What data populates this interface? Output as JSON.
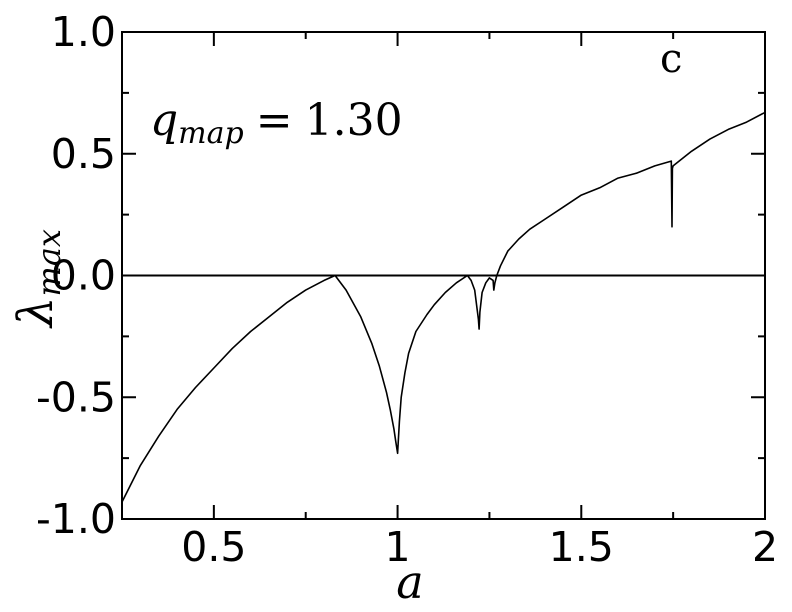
{
  "chart_data": {
    "type": "line",
    "panel_label": "c",
    "annotation": {
      "symbol": "q",
      "subscript": "map",
      "equals": "=",
      "value": "1.30"
    },
    "xlabel": "a",
    "ylabel": {
      "symbol": "λ",
      "subscript": "max"
    },
    "xlim": [
      0.25,
      2.0
    ],
    "ylim": [
      -1.0,
      1.0
    ],
    "xticks": [
      0.5,
      1.0,
      1.5,
      2.0
    ],
    "xtick_labels": [
      "0.5",
      "1",
      "1.5",
      "2"
    ],
    "yticks": [
      -1.0,
      -0.5,
      0.0,
      0.5,
      1.0
    ],
    "ytick_labels": [
      "-1.0",
      "-0.5",
      "0.0",
      "0.5",
      "1.0"
    ],
    "reference_line": {
      "y": 0.0
    },
    "grid": false,
    "series": [
      {
        "color": "#000000",
        "x": [
          0.25,
          0.3,
          0.35,
          0.4,
          0.45,
          0.5,
          0.55,
          0.6,
          0.65,
          0.7,
          0.75,
          0.8,
          0.83,
          0.86,
          0.9,
          0.93,
          0.95,
          0.97,
          0.98,
          0.99,
          0.995,
          1.0,
          1.005,
          1.01,
          1.02,
          1.03,
          1.05,
          1.08,
          1.1,
          1.13,
          1.16,
          1.19,
          1.2,
          1.21,
          1.22,
          1.222,
          1.224,
          1.23,
          1.24,
          1.25,
          1.26,
          1.262,
          1.265,
          1.27,
          1.28,
          1.3,
          1.33,
          1.36,
          1.4,
          1.45,
          1.5,
          1.55,
          1.6,
          1.65,
          1.7,
          1.745,
          1.747,
          1.748,
          1.75,
          1.8,
          1.85,
          1.9,
          1.95,
          2.0
        ],
        "y": [
          -0.93,
          -0.78,
          -0.66,
          -0.55,
          -0.46,
          -0.38,
          -0.3,
          -0.23,
          -0.17,
          -0.11,
          -0.06,
          -0.02,
          0.0,
          -0.06,
          -0.17,
          -0.28,
          -0.37,
          -0.48,
          -0.55,
          -0.63,
          -0.68,
          -0.73,
          -0.6,
          -0.5,
          -0.4,
          -0.32,
          -0.23,
          -0.16,
          -0.12,
          -0.07,
          -0.03,
          0.0,
          -0.02,
          -0.06,
          -0.18,
          -0.22,
          -0.15,
          -0.07,
          -0.03,
          -0.01,
          -0.02,
          -0.06,
          -0.03,
          0.0,
          0.04,
          0.1,
          0.15,
          0.19,
          0.23,
          0.28,
          0.33,
          0.36,
          0.4,
          0.42,
          0.45,
          0.47,
          0.2,
          0.44,
          0.45,
          0.51,
          0.56,
          0.6,
          0.63,
          0.67
        ]
      }
    ]
  }
}
